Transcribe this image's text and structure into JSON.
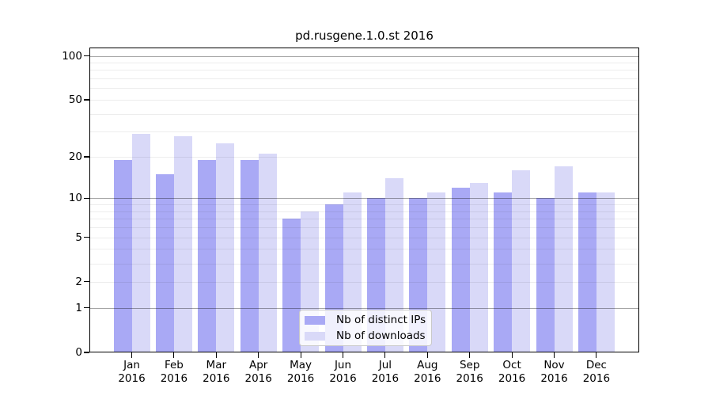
{
  "chart_data": {
    "type": "bar",
    "subtype": "grouped-pairs",
    "title": "pd.rusgene.1.0.st 2016",
    "categories": [
      "Jan",
      "Feb",
      "Mar",
      "Apr",
      "May",
      "Jun",
      "Jul",
      "Aug",
      "Sep",
      "Oct",
      "Nov",
      "Dec"
    ],
    "x_year_label": "2016",
    "series": [
      {
        "name": "Nb of distinct IPs",
        "color": "#a9a9f5",
        "values": [
          19,
          15,
          19,
          19,
          7,
          9,
          10,
          10,
          12,
          11,
          10,
          11
        ]
      },
      {
        "name": "Nb of downloads",
        "color": "#d9d9f8",
        "values": [
          29,
          28,
          25,
          21,
          8,
          11,
          14,
          11,
          13,
          16,
          17,
          11
        ]
      }
    ],
    "yscale": "log1p",
    "ylim": [
      0,
      114
    ],
    "ytick_labels": [
      100,
      50,
      20,
      10,
      5,
      2,
      1,
      0
    ],
    "major_gridlines": [
      1,
      10,
      100
    ],
    "minor_gridlines": [
      2,
      3,
      4,
      5,
      6,
      7,
      8,
      9,
      20,
      30,
      40,
      50,
      60,
      70,
      80,
      90
    ],
    "grid": "on",
    "legend_position": "bottom-center"
  },
  "colors": {
    "major_grid": "rgba(0,0,0,0.35)",
    "minor_grid": "rgba(0,0,0,0.07)",
    "spine": "#000000",
    "background": "#ffffff"
  }
}
